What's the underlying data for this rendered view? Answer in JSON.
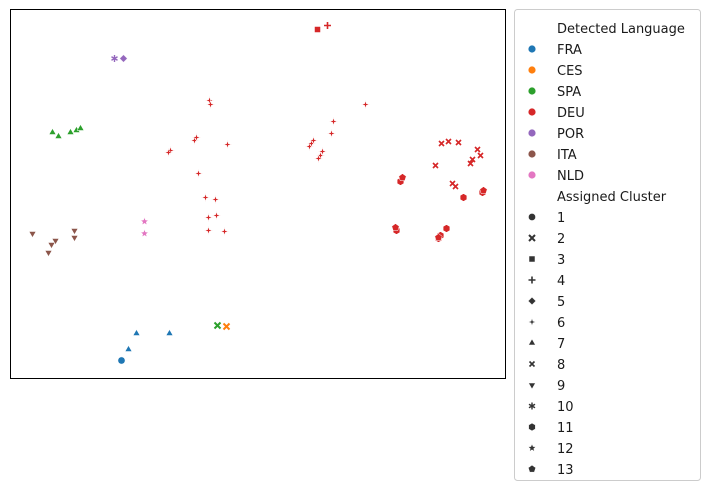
{
  "chart_data": {
    "type": "scatter",
    "title": "",
    "xlabel": "",
    "ylabel": "",
    "xlim": [
      0,
      495
    ],
    "ylim": [
      0,
      369
    ],
    "grid": false,
    "axis_ticks": false,
    "legend_placement": "outside right",
    "legend": {
      "hue_title": "Detected Language",
      "hue_entries": [
        {
          "label": "FRA",
          "color": "#1f77b4"
        },
        {
          "label": "CES",
          "color": "#ff7f0e"
        },
        {
          "label": "SPA",
          "color": "#2ca02c"
        },
        {
          "label": "DEU",
          "color": "#d62728"
        },
        {
          "label": "POR",
          "color": "#9467bd"
        },
        {
          "label": "ITA",
          "color": "#8c564b"
        },
        {
          "label": "NLD",
          "color": "#e377c2"
        }
      ],
      "style_title": "Assigned Cluster",
      "style_entries": [
        {
          "label": "1",
          "marker": "circle"
        },
        {
          "label": "2",
          "marker": "x"
        },
        {
          "label": "3",
          "marker": "square"
        },
        {
          "label": "4",
          "marker": "plus"
        },
        {
          "label": "5",
          "marker": "diamond"
        },
        {
          "label": "6",
          "marker": "thin-star"
        },
        {
          "label": "7",
          "marker": "triangle-up"
        },
        {
          "label": "8",
          "marker": "small-x"
        },
        {
          "label": "9",
          "marker": "triangle-down"
        },
        {
          "label": "10",
          "marker": "asterisk"
        },
        {
          "label": "11",
          "marker": "hexagon"
        },
        {
          "label": "12",
          "marker": "star"
        },
        {
          "label": "13",
          "marker": "pentagon"
        }
      ]
    },
    "series": [
      {
        "language": "FRA",
        "cluster": "1",
        "points": [
          [
            111,
            18
          ]
        ]
      },
      {
        "language": "FRA",
        "cluster": "7",
        "points": [
          [
            118,
            29
          ],
          [
            126,
            45
          ],
          [
            159,
            45
          ]
        ]
      },
      {
        "language": "CES",
        "cluster": "2",
        "points": [
          [
            216,
            52
          ]
        ]
      },
      {
        "language": "SPA",
        "cluster": "2",
        "points": [
          [
            207,
            53
          ]
        ]
      },
      {
        "language": "SPA",
        "cluster": "7",
        "points": [
          [
            42,
            246
          ],
          [
            48,
            242
          ],
          [
            60,
            246
          ],
          [
            66,
            248
          ],
          [
            70,
            250
          ]
        ]
      },
      {
        "language": "POR",
        "cluster": "5",
        "points": [
          [
            113,
            320
          ]
        ]
      },
      {
        "language": "POR",
        "cluster": "10",
        "points": [
          [
            104,
            320
          ]
        ]
      },
      {
        "language": "ITA",
        "cluster": "9",
        "points": [
          [
            22,
            145
          ],
          [
            38,
            126
          ],
          [
            41,
            134
          ],
          [
            45,
            138
          ],
          [
            64,
            148
          ],
          [
            64,
            141
          ]
        ]
      },
      {
        "language": "NLD",
        "cluster": "12",
        "points": [
          [
            134,
            157
          ],
          [
            134,
            145
          ]
        ]
      },
      {
        "language": "DEU",
        "cluster": "3",
        "points": [
          [
            307,
            349
          ]
        ]
      },
      {
        "language": "DEU",
        "cluster": "4",
        "points": [
          [
            317,
            353
          ]
        ]
      },
      {
        "language": "DEU",
        "cluster": "6",
        "points": [
          [
            199,
            278
          ],
          [
            200,
            274
          ],
          [
            184,
            238
          ],
          [
            186,
            241
          ],
          [
            160,
            228
          ],
          [
            158,
            226
          ],
          [
            217,
            234
          ],
          [
            188,
            205
          ],
          [
            195,
            181
          ],
          [
            205,
            179
          ],
          [
            206,
            163
          ],
          [
            198,
            161
          ],
          [
            198,
            148
          ],
          [
            214,
            147
          ],
          [
            299,
            232
          ],
          [
            301,
            235
          ],
          [
            303,
            238
          ],
          [
            310,
            223
          ],
          [
            308,
            220
          ],
          [
            312,
            227
          ],
          [
            321,
            245
          ],
          [
            323,
            257
          ],
          [
            355,
            274
          ]
        ]
      },
      {
        "language": "DEU",
        "cluster": "8",
        "points": [
          [
            431,
            235
          ],
          [
            438,
            237
          ],
          [
            448,
            236
          ],
          [
            425,
            213
          ],
          [
            462,
            219
          ],
          [
            470,
            223
          ],
          [
            467,
            229
          ],
          [
            442,
            195
          ],
          [
            445,
            192
          ],
          [
            460,
            215
          ]
        ]
      },
      {
        "language": "DEU",
        "cluster": "11",
        "points": [
          [
            390,
            197
          ],
          [
            386,
            148
          ],
          [
            428,
            140
          ],
          [
            430,
            143
          ],
          [
            436,
            150
          ],
          [
            453,
            181
          ],
          [
            472,
            186
          ]
        ]
      },
      {
        "language": "DEU",
        "cluster": "13",
        "points": [
          [
            392,
            201
          ],
          [
            385,
            151
          ],
          [
            428,
            141
          ],
          [
            473,
            188
          ]
        ]
      }
    ]
  }
}
